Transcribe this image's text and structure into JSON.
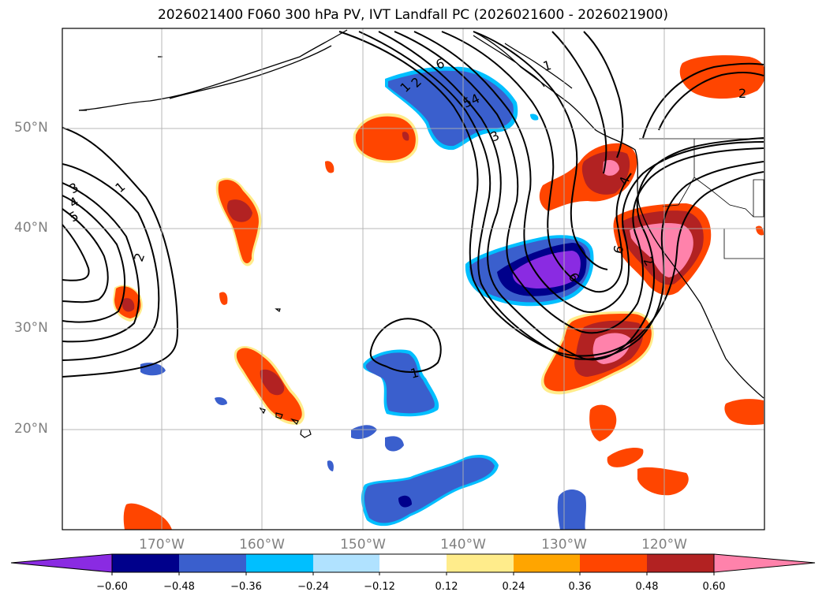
{
  "title": "2026021400 F060 300 hPa PV, IVT Landfall PC (2026021600 - 2026021900)",
  "map": {
    "lat_labels": [
      "50°N",
      "40°N",
      "30°N",
      "20°N"
    ],
    "lon_labels": [
      "170°W",
      "160°W",
      "150°W",
      "140°W",
      "130°W",
      "120°W"
    ],
    "contour_labels": [
      "1",
      "2",
      "3",
      "4",
      "5",
      "6",
      "6",
      "5",
      "4",
      "3",
      "2",
      "1",
      "2",
      "1",
      "6",
      "4",
      "2",
      "1"
    ],
    "colors": {
      "neg_060": "#8a2be2",
      "neg_048": "#00008b",
      "neg_036": "#3a5fcd",
      "neg_024": "#00bfff",
      "neg_012": "#b0e2ff",
      "pos_012": "#ffec8b",
      "pos_024": "#ffa500",
      "pos_036": "#ff4500",
      "pos_048": "#b22222",
      "pos_060": "#ff82ab"
    }
  },
  "colorbar": {
    "ticks": [
      "−0.60",
      "−0.48",
      "−0.36",
      "−0.24",
      "−0.12",
      "0.12",
      "0.24",
      "0.36",
      "0.48",
      "0.60"
    ],
    "colors": [
      "#8a2be2",
      "#00008b",
      "#3a5fcd",
      "#00bfff",
      "#b0e2ff",
      "#ffffff",
      "#ffec8b",
      "#ffa500",
      "#ff4500",
      "#b22222",
      "#ff82ab"
    ]
  }
}
